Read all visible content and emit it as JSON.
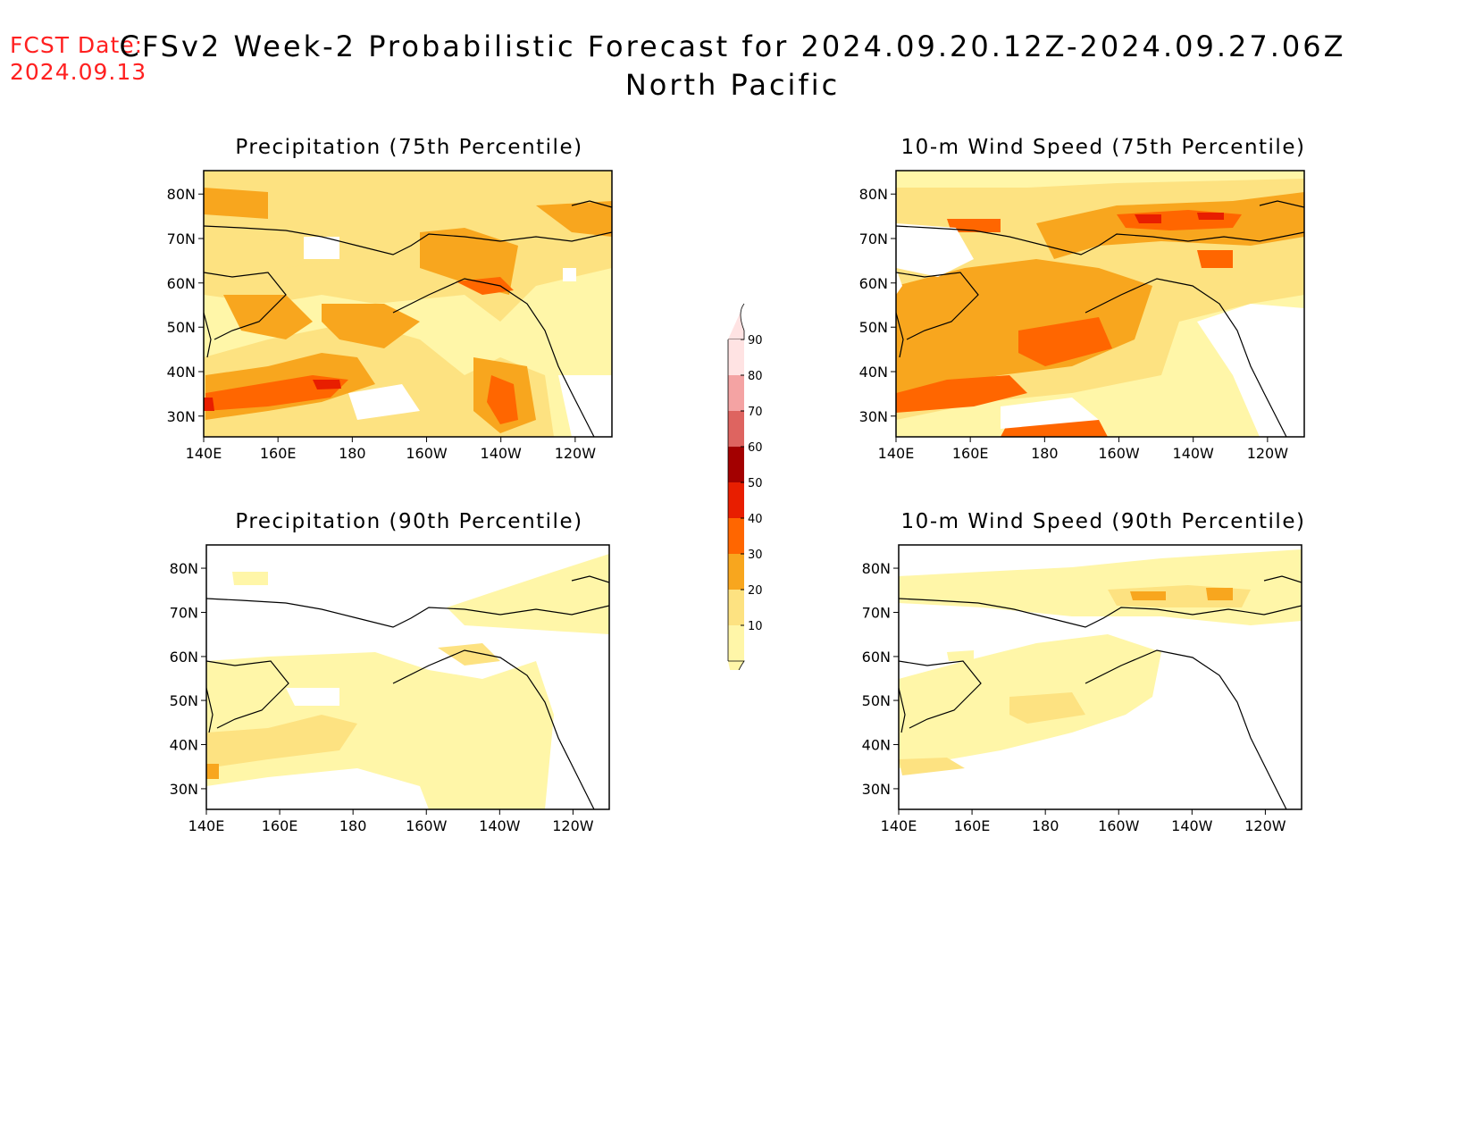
{
  "header": {
    "fcst_label": "FCST Date:",
    "fcst_date": "2024.09.13",
    "title": "CFSv2 Week-2 Probabilistic Forecast for 2024.09.20.12Z-2024.09.27.06Z",
    "region": "North Pacific"
  },
  "panels": [
    {
      "id": "p1",
      "title": "Precipitation (75th Percentile)"
    },
    {
      "id": "p2",
      "title": "10-m Wind Speed (75th Percentile)"
    },
    {
      "id": "p3",
      "title": "Precipitation (90th Percentile)"
    },
    {
      "id": "p4",
      "title": "10-m Wind Speed (90th Percentile)"
    }
  ],
  "axes": {
    "lon_ticks": [
      "140E",
      "160E",
      "180",
      "160W",
      "140W",
      "120W"
    ],
    "lat_ticks": [
      "80N",
      "70N",
      "60N",
      "50N",
      "40N",
      "30N"
    ]
  },
  "colorbar": {
    "levels": [
      "90",
      "80",
      "70",
      "60",
      "50",
      "40",
      "30",
      "20",
      "10"
    ],
    "colors": {
      "c10": "#fff6a8",
      "c20": "#fde281",
      "c30": "#f8a61e",
      "c40": "#ff6600",
      "c50": "#e81e00",
      "c60": "#a30000",
      "c70": "#de6460",
      "c80": "#f4a3a3",
      "c90": "#ffe3e3"
    }
  }
}
